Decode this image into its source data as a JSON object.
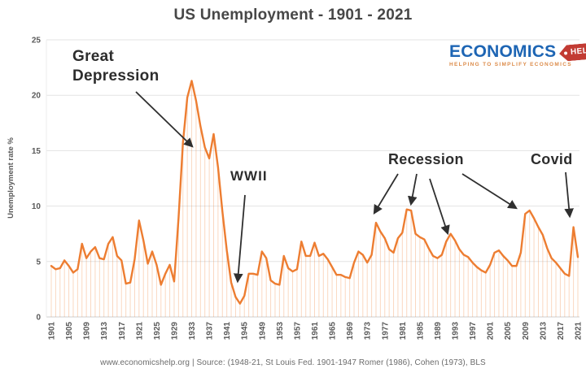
{
  "title": "US Unemployment - 1901 - 2021",
  "logo": {
    "brand": "ECONOMICS",
    "badge": "HELP",
    "tagline": "HELPING TO SIMPLIFY ECONOMICS",
    "brand_color": "#1d65b4",
    "badge_color": "#c23b33"
  },
  "source_note": "www.economicshelp.org  | Source: (1948-21, St Louis Fed. 1901-1947 Romer (1986), Cohen (1973), BLS",
  "annotations": [
    {
      "label": "Great Depression",
      "arrows": [
        [
          167,
          113,
          236,
          180
        ]
      ]
    },
    {
      "label": "WWII",
      "arrows": [
        [
          301,
          240,
          292,
          346
        ]
      ]
    },
    {
      "label": "Recession",
      "arrows": [
        [
          489,
          214,
          460,
          262
        ],
        [
          512,
          214,
          505,
          251
        ],
        [
          528,
          220,
          550,
          287
        ],
        [
          568,
          214,
          634,
          256
        ]
      ]
    },
    {
      "label": "Covid",
      "arrows": [
        [
          695,
          212,
          700,
          266
        ]
      ]
    }
  ],
  "chart_data": {
    "type": "line",
    "title": "US Unemployment - 1901 - 2021",
    "xlabel": "",
    "ylabel": "Unemployment rate %",
    "ylim": [
      0,
      25
    ],
    "yticks": [
      0,
      5,
      10,
      15,
      20,
      25
    ],
    "x_start": 1901,
    "x_end": 2021,
    "xtick_step": 4,
    "xtick_labels": [
      "1901",
      "1905",
      "1909",
      "1913",
      "1917",
      "1921",
      "1925",
      "1929",
      "1933",
      "1937",
      "1941",
      "1945",
      "1949",
      "1953",
      "1957",
      "1961",
      "1965",
      "1969",
      "1973",
      "1977",
      "1981",
      "1985",
      "1989",
      "1993",
      "1997",
      "2001",
      "2005",
      "2009",
      "2013",
      "2017",
      "2021"
    ],
    "grid": "horizontal",
    "legend": "none",
    "line_color": "#ED7D31",
    "dropline_color": "rgba(237,125,49,0.30)",
    "values": [
      4.6,
      4.3,
      4.4,
      5.1,
      4.6,
      4.0,
      4.3,
      6.6,
      5.3,
      5.9,
      6.3,
      5.3,
      5.2,
      6.6,
      7.2,
      5.5,
      5.1,
      3.0,
      3.1,
      5.2,
      8.7,
      6.9,
      4.8,
      5.9,
      4.7,
      2.9,
      3.9,
      4.7,
      3.2,
      8.9,
      15.7,
      19.8,
      21.3,
      19.5,
      17.2,
      15.3,
      14.3,
      16.5,
      13.5,
      9.5,
      6.0,
      3.1,
      1.8,
      1.2,
      1.9,
      3.9,
      3.9,
      3.8,
      5.9,
      5.3,
      3.3,
      3.0,
      2.9,
      5.5,
      4.4,
      4.1,
      4.3,
      6.8,
      5.5,
      5.5,
      6.7,
      5.5,
      5.7,
      5.2,
      4.5,
      3.8,
      3.8,
      3.6,
      3.5,
      4.9,
      5.9,
      5.6,
      4.9,
      5.6,
      8.5,
      7.7,
      7.1,
      6.1,
      5.8,
      7.1,
      7.6,
      9.7,
      9.6,
      7.5,
      7.2,
      7.0,
      6.2,
      5.5,
      5.3,
      5.6,
      6.8,
      7.5,
      6.9,
      6.1,
      5.6,
      5.4,
      4.9,
      4.5,
      4.2,
      4.0,
      4.7,
      5.8,
      6.0,
      5.5,
      5.1,
      4.6,
      4.6,
      5.8,
      9.3,
      9.6,
      8.9,
      8.1,
      7.4,
      6.2,
      5.3,
      4.9,
      4.4,
      3.9,
      3.7,
      8.1,
      5.4
    ]
  }
}
